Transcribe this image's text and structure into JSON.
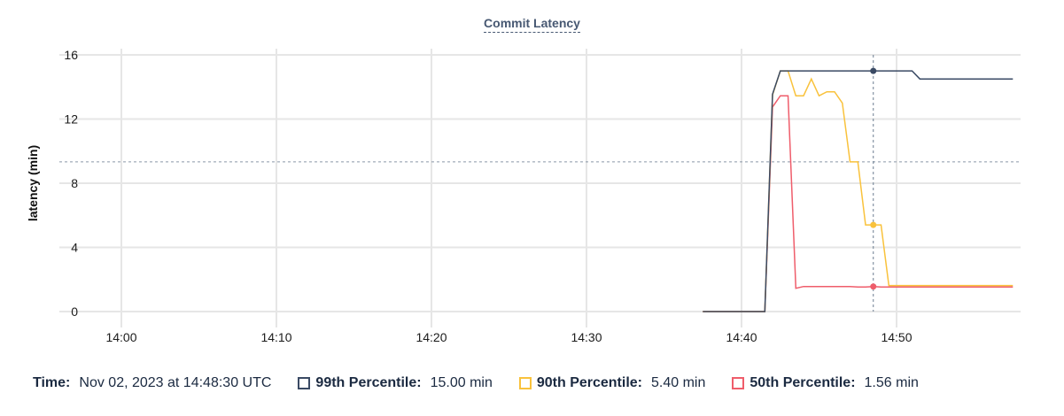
{
  "chart_data": {
    "type": "line",
    "title": "Commit Latency",
    "xlabel": "",
    "ylabel": "latency (min)",
    "ylim": [
      0,
      16
    ],
    "yticks": [
      "0",
      "4",
      "8",
      "12",
      "16"
    ],
    "xticks": [
      "14:00",
      "14:10",
      "14:20",
      "14:30",
      "14:40",
      "14:50"
    ],
    "xlim": [
      "13:56:00",
      "14:58:00"
    ],
    "grid": true,
    "reference_line": 9.33,
    "crosshair_time": "14:48:30",
    "x": [
      "14:37:30",
      "14:38:00",
      "14:38:30",
      "14:39:00",
      "14:39:30",
      "14:40:00",
      "14:40:30",
      "14:41:00",
      "14:41:30",
      "14:42:00",
      "14:42:30",
      "14:43:00",
      "14:43:30",
      "14:44:00",
      "14:44:30",
      "14:45:00",
      "14:45:30",
      "14:46:00",
      "14:46:30",
      "14:47:00",
      "14:47:30",
      "14:48:00",
      "14:48:30",
      "14:49:00",
      "14:49:30",
      "14:50:00",
      "14:50:30",
      "14:51:00",
      "14:51:30",
      "14:52:00",
      "14:52:30",
      "14:53:00",
      "14:53:30",
      "14:54:00",
      "14:54:30",
      "14:55:00",
      "14:55:30",
      "14:56:00",
      "14:56:30",
      "14:57:00",
      "14:57:30"
    ],
    "series": [
      {
        "name": "99th Percentile",
        "color": "#3a4a64",
        "values": [
          0,
          0,
          0,
          0,
          0,
          0,
          0,
          0,
          0,
          13.55,
          15,
          15,
          15,
          15,
          15,
          15,
          15,
          15,
          15,
          15,
          15,
          15,
          15,
          15,
          15,
          15,
          15,
          15,
          14.5,
          14.5,
          14.5,
          14.5,
          14.5,
          14.5,
          14.5,
          14.5,
          14.5,
          14.5,
          14.5,
          14.5,
          14.5
        ]
      },
      {
        "name": "90th Percentile",
        "color": "#f9c23c",
        "values": [
          0,
          0,
          0,
          0,
          0,
          0,
          0,
          0,
          0,
          13.5,
          15,
          15,
          13.45,
          13.45,
          14.5,
          13.45,
          13.7,
          13.7,
          13.0,
          9.33,
          9.33,
          5.4,
          5.4,
          5.4,
          1.62,
          1.62,
          1.62,
          1.62,
          1.62,
          1.62,
          1.62,
          1.62,
          1.62,
          1.62,
          1.62,
          1.62,
          1.62,
          1.62,
          1.62,
          1.62,
          1.62
        ]
      },
      {
        "name": "50th Percentile",
        "color": "#ef5d6b",
        "values": [
          0,
          0,
          0,
          0,
          0,
          0,
          0,
          0,
          0,
          12.75,
          13.45,
          13.45,
          1.45,
          1.56,
          1.56,
          1.56,
          1.56,
          1.56,
          1.56,
          1.56,
          1.53,
          1.53,
          1.56,
          1.53,
          1.53,
          1.53,
          1.53,
          1.53,
          1.53,
          1.53,
          1.53,
          1.53,
          1.53,
          1.53,
          1.53,
          1.53,
          1.53,
          1.53,
          1.53,
          1.53,
          1.53
        ]
      }
    ]
  },
  "legend": {
    "time_label": "Time:",
    "time_value": "Nov 02, 2023 at 14:48:30 UTC",
    "items": [
      {
        "label": "99th Percentile:",
        "value": "15.00 min",
        "color": "#3a4a64"
      },
      {
        "label": "90th Percentile:",
        "value": "5.40 min",
        "color": "#f9c23c"
      },
      {
        "label": "50th Percentile:",
        "value": "1.56 min",
        "color": "#ef5d6b"
      }
    ]
  }
}
